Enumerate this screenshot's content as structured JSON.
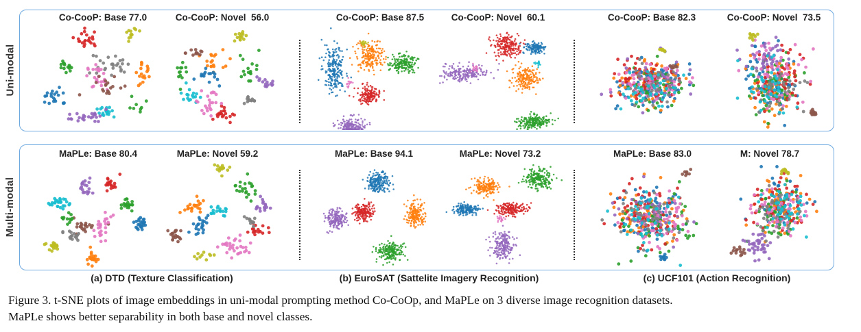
{
  "rows": {
    "uni": "Uni-modal",
    "multi": "Multi-modal"
  },
  "titles": {
    "uni": [
      "Co-CooP: Base 77.0",
      "Co-CooP: Novel  56.0",
      "Co-CooP: Base 87.5",
      "Co-CooP: Novel  60.1",
      "Co-CooP: Base 82.3",
      "Co-CooP: Novel  73.5"
    ],
    "multi": [
      "MaPLe: Base 80.4",
      "MaPLe: Novel 59.2",
      "MaPLe: Base 94.1",
      "MaPLe: Novel 73.2",
      "MaPLe: Base 83.0",
      "M: Novel 78.7"
    ]
  },
  "subcaptions": [
    "(a) DTD (Texture Classification)",
    "(b) EuroSAT (Sattelite Imagery Recognition)",
    "(c) UCF101 (Action Recognition)"
  ],
  "caption": {
    "line1": "Figure 3. t-SNE plots of image embeddings in uni-modal prompting method Co-CoOp, and MaPLe on 3 diverse image recognition datasets.",
    "line2": "MaPLe shows better separability in both base and novel classes."
  },
  "palette": [
    "#1f77b4",
    "#ff7f0e",
    "#2ca02c",
    "#d62728",
    "#9467bd",
    "#8c564b",
    "#e377c2",
    "#7f7f7f",
    "#bcbd22",
    "#17becf"
  ]
}
